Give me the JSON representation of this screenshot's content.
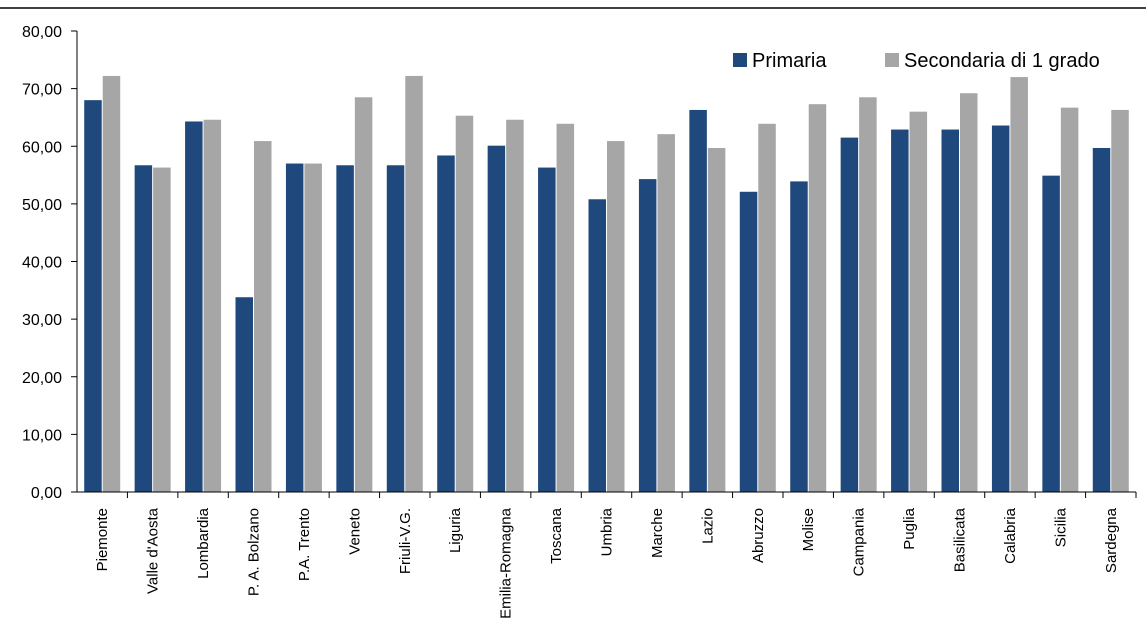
{
  "chart_data": {
    "type": "bar",
    "title": "",
    "xlabel": "",
    "ylabel": "",
    "ylim": [
      0,
      80
    ],
    "yticks": [
      "0,00",
      "10,00",
      "20,00",
      "30,00",
      "40,00",
      "50,00",
      "60,00",
      "70,00",
      "80,00"
    ],
    "grid": false,
    "legend_position": "top-right",
    "categories": [
      "Piemonte",
      "Valle d'Aosta",
      "Lombardia",
      "P. A. Bolzano",
      "P.A. Trento",
      "Veneto",
      "Friuli-V.G.",
      "Liguria",
      "Emilia-Romagna",
      "Toscana",
      "Umbria",
      "Marche",
      "Lazio",
      "Abruzzo",
      "Molise",
      "Campania",
      "Puglia",
      "Basilicata",
      "Calabria",
      "Sicilia",
      "Sardegna"
    ],
    "series": [
      {
        "name": "Primaria",
        "color": "#1f497d",
        "values": [
          68.0,
          56.7,
          64.3,
          33.8,
          57.0,
          56.7,
          56.7,
          58.4,
          60.1,
          56.3,
          50.8,
          54.3,
          66.3,
          52.1,
          53.9,
          61.5,
          62.9,
          62.9,
          63.6,
          54.9,
          59.7
        ]
      },
      {
        "name": "Secondaria di 1 grado",
        "color": "#a6a6a6",
        "values": [
          72.2,
          56.3,
          64.6,
          60.9,
          57.0,
          68.5,
          72.2,
          65.3,
          64.6,
          63.9,
          60.9,
          62.1,
          59.7,
          63.9,
          67.3,
          68.5,
          66.0,
          69.2,
          72.0,
          66.7,
          66.3
        ]
      }
    ]
  }
}
